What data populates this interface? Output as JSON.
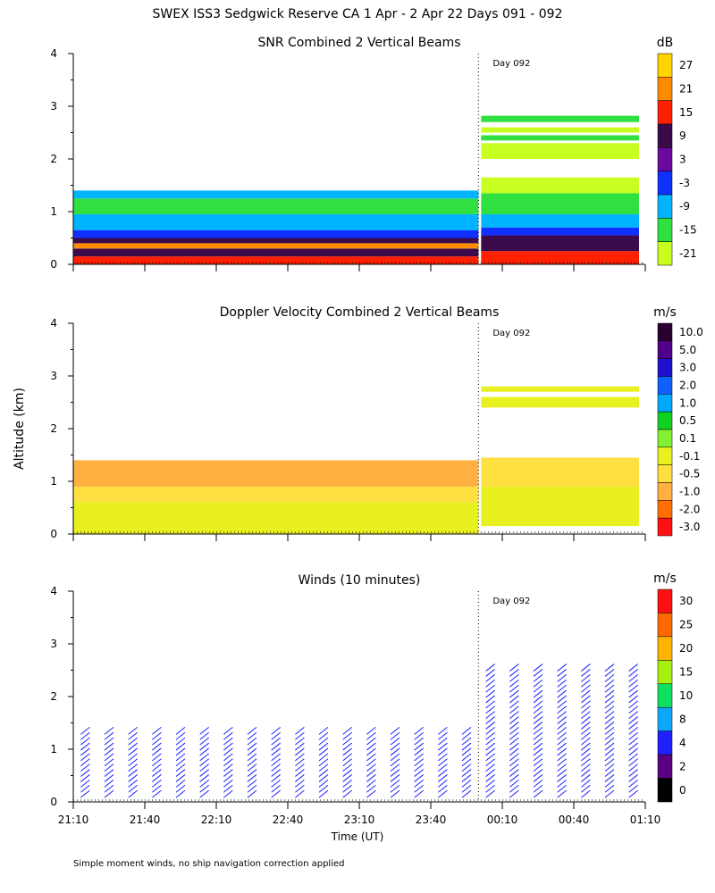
{
  "page": {
    "title": "SWEX ISS3 Sedgwick Reserve CA   1 Apr -  2 Apr 22 Days 091 - 092",
    "ylabel": "Altitude (km)",
    "xlabel": "Time (UT)",
    "footnote": "Simple moment winds, no ship navigation correction applied",
    "day_marker": "Day 092"
  },
  "chart_data": [
    {
      "type": "heatmap",
      "title": "SNR Combined 2 Vertical Beams",
      "units": "dB",
      "colorbar_ticks": [
        "27",
        "21",
        "15",
        "9",
        "3",
        "-3",
        "-9",
        "-15",
        "-21"
      ],
      "colors": [
        "#ffd400",
        "#ff8c00",
        "#ff2000",
        "#3a0a4a",
        "#6a0aa0",
        "#1030ff",
        "#00b4ff",
        "#30e040",
        "#c8ff20"
      ],
      "x_ticks": [
        "21:10",
        "21:40",
        "22:10",
        "22:40",
        "23:10",
        "23:40",
        "00:10",
        "00:40",
        "01:10"
      ],
      "y_ticks": [
        "0",
        "1",
        "2",
        "3",
        "4"
      ],
      "ylim": [
        0,
        4
      ],
      "xlim_minutes": [
        0,
        240
      ],
      "day_boundary_minutes": 170,
      "layers_before_boundary": [
        {
          "from": 0.0,
          "to": 0.15,
          "value": 15
        },
        {
          "from": 0.15,
          "to": 0.3,
          "value": 12
        },
        {
          "from": 0.3,
          "to": 0.4,
          "value": 21
        },
        {
          "from": 0.4,
          "to": 0.5,
          "value": 9
        },
        {
          "from": 0.5,
          "to": 0.65,
          "value": 0
        },
        {
          "from": 0.65,
          "to": 0.95,
          "value": -9
        },
        {
          "from": 0.95,
          "to": 1.25,
          "value": -15
        },
        {
          "from": 1.25,
          "to": 1.4,
          "value": -9
        }
      ],
      "layers_after_boundary": [
        {
          "from": 0.0,
          "to": 0.25,
          "value": 15
        },
        {
          "from": 0.25,
          "to": 0.55,
          "value": 9
        },
        {
          "from": 0.55,
          "to": 0.7,
          "value": 0
        },
        {
          "from": 0.7,
          "to": 0.95,
          "value": -9
        },
        {
          "from": 0.95,
          "to": 1.35,
          "value": -12
        },
        {
          "from": 1.35,
          "to": 1.65,
          "value": -18
        },
        {
          "from": 2.0,
          "to": 2.3,
          "value": -18
        },
        {
          "from": 2.35,
          "to": 2.45,
          "value": -15
        },
        {
          "from": 2.5,
          "to": 2.6,
          "value": -18
        },
        {
          "from": 2.7,
          "to": 2.82,
          "value": -15
        }
      ]
    },
    {
      "type": "heatmap",
      "title": "Doppler Velocity Combined 2 Vertical Beams",
      "units": "m/s",
      "colorbar_ticks": [
        "10.0",
        "5.0",
        "3.0",
        "2.0",
        "1.0",
        "0.5",
        "0.1",
        "-0.1",
        "-0.5",
        "-1.0",
        "-2.0",
        "-3.0"
      ],
      "colors": [
        "#2a0030",
        "#50008a",
        "#2010d0",
        "#1060ff",
        "#00a8ff",
        "#10d020",
        "#80f030",
        "#e8f020",
        "#ffe040",
        "#ffb040",
        "#ff7000",
        "#ff1010"
      ],
      "x_ticks": [
        "21:10",
        "21:40",
        "22:10",
        "22:40",
        "23:10",
        "23:40",
        "00:10",
        "00:40",
        "01:10"
      ],
      "y_ticks": [
        "0",
        "1",
        "2",
        "3",
        "4"
      ],
      "ylim": [
        0,
        4
      ],
      "xlim_minutes": [
        0,
        240
      ],
      "day_boundary_minutes": 170,
      "layers_before_boundary": [
        {
          "from": 0.0,
          "to": 0.6,
          "value": -0.1
        },
        {
          "from": 0.6,
          "to": 0.9,
          "value": -0.2
        },
        {
          "from": 0.9,
          "to": 1.4,
          "value": -0.7
        }
      ],
      "layers_after_boundary": [
        {
          "from": 0.15,
          "to": 0.9,
          "value": -0.1
        },
        {
          "from": 0.9,
          "to": 1.45,
          "value": -0.3
        },
        {
          "from": 2.4,
          "to": 2.6,
          "value": -0.1
        },
        {
          "from": 2.7,
          "to": 2.8,
          "value": -0.1
        }
      ]
    },
    {
      "type": "scatter",
      "title": "Winds (10 minutes)",
      "units": "m/s",
      "colorbar_ticks": [
        "30",
        "25",
        "20",
        "15",
        "10",
        "8",
        "4",
        "2",
        "0"
      ],
      "colors": [
        "#ff1010",
        "#ff6a00",
        "#ffb400",
        "#a8f010",
        "#10e060",
        "#10a8ff",
        "#2020ff",
        "#5a0080",
        "#000000"
      ],
      "x_ticks": [
        "21:10",
        "21:40",
        "22:10",
        "22:40",
        "23:10",
        "23:40",
        "00:10",
        "00:40",
        "01:10"
      ],
      "y_ticks": [
        "0",
        "1",
        "2",
        "3",
        "4"
      ],
      "ylim": [
        0,
        4
      ],
      "xlim_minutes": [
        0,
        240
      ],
      "day_boundary_minutes": 170,
      "profile_times_minutes": [
        5,
        15,
        25,
        35,
        45,
        55,
        65,
        75,
        85,
        95,
        105,
        115,
        125,
        135,
        145,
        155,
        165,
        175,
        185,
        195,
        205,
        215,
        225,
        235
      ],
      "max_height_before_km": 1.4,
      "max_height_after_km": 2.6,
      "typical_speed_ms": 4
    }
  ]
}
